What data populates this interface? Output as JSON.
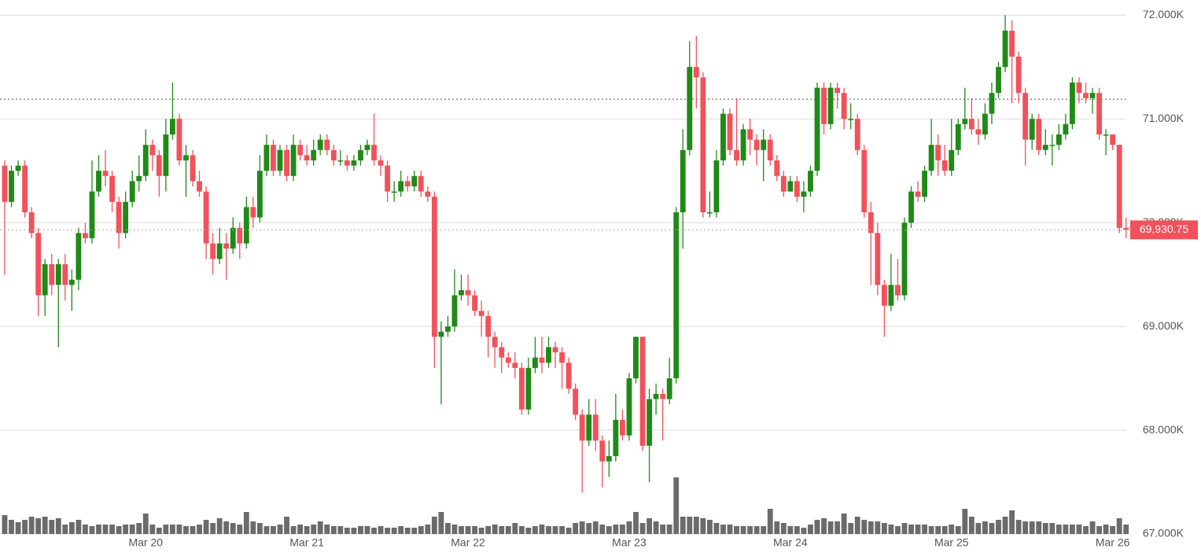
{
  "chart_data": {
    "type": "candlestick",
    "xlim": [
      -0.7,
      167.5
    ],
    "xticks": [
      {
        "value": 21,
        "label": "Mar 20"
      },
      {
        "value": 45,
        "label": "Mar 21"
      },
      {
        "value": 69,
        "label": "Mar 22"
      },
      {
        "value": 93,
        "label": "Mar 23"
      },
      {
        "value": 117,
        "label": "Mar 24"
      },
      {
        "value": 141,
        "label": "Mar 25"
      },
      {
        "value": 165,
        "label": "Mar 26"
      }
    ],
    "ylim": [
      67000,
      72070
    ],
    "yticks": [
      {
        "value": 67000,
        "label": "67.000K"
      },
      {
        "value": 68000,
        "label": "68.000K"
      },
      {
        "value": 69000,
        "label": "69.000K"
      },
      {
        "value": 70000,
        "label": "70.000K"
      },
      {
        "value": 71000,
        "label": "71.000K"
      },
      {
        "value": 72000,
        "label": "72.000K"
      }
    ],
    "grid": true,
    "up_color": "#1f8a16",
    "down_color": "#f2515b",
    "volume_color": "#6b6b6b",
    "ref_line": 71190,
    "price_line": {
      "value": 69930.75,
      "label": "69,930.75"
    },
    "open": [
      70550,
      70200,
      70500,
      70550,
      70100,
      69900,
      69300,
      69600,
      69400,
      69600,
      69400,
      69450,
      69900,
      69850,
      70300,
      70500,
      70450,
      70200,
      69900,
      70200,
      70400,
      70450,
      70750,
      70650,
      70450,
      70850,
      71000,
      70600,
      70650,
      70400,
      70300,
      69800,
      69650,
      69800,
      69750,
      69950,
      69800,
      70150,
      70050,
      70500,
      70750,
      70500,
      70700,
      70450,
      70750,
      70650,
      70600,
      70700,
      70800,
      70700,
      70600,
      70600,
      70550,
      70600,
      70700,
      70750,
      70600,
      70550,
      70300,
      70300,
      70400,
      70350,
      70450,
      70300,
      70250,
      68900,
      68950,
      69000,
      69300,
      69350,
      69300,
      69150,
      69100,
      68900,
      68800,
      68700,
      68650,
      68600,
      68200,
      68600,
      68700,
      68650,
      68800,
      68750,
      68650,
      68400,
      68150,
      67900,
      68150,
      67900,
      67700,
      67750,
      68100,
      67950,
      68500,
      68900,
      67850,
      68300,
      68350,
      68300,
      68500,
      70100,
      70700,
      71500,
      71400,
      70100,
      70100,
      70600,
      71050,
      70700,
      70600,
      70900,
      70800,
      70700,
      70800,
      70600,
      70450,
      70300,
      70400,
      70250,
      70300,
      70500,
      71300,
      70950,
      71300,
      71250,
      71000,
      71000,
      70700,
      70100,
      69900,
      69400,
      69200,
      69400,
      69300,
      70000,
      70300,
      70250,
      70500,
      70750,
      70600,
      70500,
      70700,
      70950,
      71000,
      70900,
      70850,
      71050,
      71250,
      71500,
      71850,
      71600,
      71250,
      70800,
      71000,
      70700,
      70750,
      70750,
      70850,
      70950,
      71350,
      71250,
      71200,
      71250,
      70850,
      70850,
      70750,
      69950
    ],
    "high": [
      70600,
      70550,
      70600,
      70600,
      70150,
      69950,
      69650,
      69700,
      69650,
      69700,
      69550,
      69950,
      70000,
      70600,
      70650,
      70700,
      70500,
      70250,
      70300,
      70500,
      70650,
      70900,
      70800,
      70700,
      71000,
      71350,
      71050,
      70750,
      70700,
      70500,
      70350,
      69900,
      69950,
      69900,
      70050,
      70000,
      70250,
      70250,
      70650,
      70850,
      70800,
      70750,
      70750,
      70850,
      70800,
      70750,
      70800,
      70850,
      70850,
      70750,
      70700,
      70650,
      70650,
      70750,
      70800,
      71050,
      70650,
      70600,
      70400,
      70500,
      70450,
      70500,
      70500,
      70350,
      70300,
      69050,
      69100,
      69550,
      69500,
      69500,
      69350,
      69250,
      69150,
      68950,
      68850,
      68750,
      68750,
      68650,
      68700,
      68900,
      68900,
      68900,
      68850,
      68800,
      68700,
      68450,
      68200,
      68300,
      68300,
      67950,
      67900,
      68350,
      68200,
      68550,
      68900,
      68900,
      68400,
      68450,
      68400,
      68700,
      70150,
      70900,
      71750,
      71800,
      71450,
      70300,
      70700,
      71100,
      71100,
      71200,
      70950,
      71000,
      70850,
      70900,
      70850,
      70650,
      70500,
      70450,
      70450,
      70400,
      70550,
      71350,
      71350,
      71350,
      71350,
      71300,
      71150,
      71050,
      70750,
      70200,
      70000,
      69450,
      69700,
      69650,
      70050,
      70350,
      70400,
      70550,
      71000,
      70850,
      70750,
      71000,
      71000,
      71300,
      71200,
      71000,
      71150,
      71350,
      71550,
      72000,
      71950,
      71650,
      71300,
      71050,
      71050,
      70900,
      70850,
      70950,
      71050,
      71400,
      71400,
      71350,
      71300,
      71300,
      70900,
      70850,
      70750,
      70050
    ],
    "low": [
      69500,
      70150,
      70450,
      70050,
      69850,
      69100,
      69100,
      69300,
      68800,
      69250,
      69150,
      69350,
      69800,
      69800,
      70250,
      70350,
      70100,
      69750,
      69850,
      70150,
      70300,
      70400,
      70500,
      70250,
      70300,
      70800,
      70550,
      70250,
      70350,
      70250,
      69650,
      69500,
      69600,
      69450,
      69700,
      69650,
      69750,
      69950,
      70000,
      70450,
      70450,
      70450,
      70400,
      70400,
      70600,
      70550,
      70550,
      70650,
      70650,
      70550,
      70550,
      70500,
      70500,
      70550,
      70650,
      70550,
      70450,
      70200,
      70200,
      70250,
      70300,
      70300,
      70250,
      70200,
      68600,
      68250,
      68900,
      68950,
      69250,
      69200,
      69100,
      68900,
      68700,
      68600,
      68550,
      68600,
      68500,
      68150,
      68150,
      68550,
      68550,
      68600,
      68600,
      68400,
      68350,
      68100,
      67400,
      67850,
      67800,
      67450,
      67550,
      67700,
      67900,
      67900,
      68450,
      67800,
      67500,
      68150,
      67900,
      68250,
      68450,
      69750,
      70650,
      71100,
      70050,
      70050,
      70050,
      70550,
      70650,
      70550,
      70550,
      70650,
      70550,
      70400,
      70550,
      70400,
      70250,
      70300,
      70200,
      70100,
      70250,
      70450,
      70850,
      70900,
      71100,
      70900,
      70900,
      70650,
      70050,
      69400,
      69300,
      68900,
      69150,
      69250,
      69250,
      69950,
      70200,
      70200,
      70450,
      70450,
      70450,
      70450,
      70650,
      70900,
      70850,
      70750,
      70800,
      70950,
      71200,
      71450,
      71150,
      71150,
      70550,
      70700,
      70650,
      70650,
      70550,
      70700,
      70800,
      70900,
      71150,
      71150,
      71050,
      70800,
      70650,
      70700,
      69900,
      69850
    ],
    "close": [
      70200,
      70500,
      70550,
      70100,
      69900,
      69300,
      69600,
      69400,
      69600,
      69400,
      69450,
      69900,
      69850,
      70300,
      70500,
      70450,
      70200,
      69900,
      70200,
      70400,
      70450,
      70750,
      70650,
      70450,
      70850,
      71000,
      70600,
      70650,
      70400,
      70300,
      69800,
      69650,
      69800,
      69750,
      69950,
      69800,
      70150,
      70050,
      70500,
      70750,
      70500,
      70700,
      70450,
      70750,
      70650,
      70600,
      70700,
      70800,
      70700,
      70600,
      70600,
      70550,
      70600,
      70700,
      70750,
      70600,
      70550,
      70300,
      70300,
      70400,
      70350,
      70450,
      70300,
      70250,
      68900,
      68950,
      69000,
      69300,
      69350,
      69300,
      69150,
      69100,
      68900,
      68800,
      68700,
      68650,
      68600,
      68200,
      68600,
      68700,
      68650,
      68800,
      68750,
      68650,
      68400,
      68150,
      67900,
      68150,
      67900,
      67700,
      67750,
      68100,
      67950,
      68500,
      68900,
      67850,
      68300,
      68350,
      68300,
      68500,
      70100,
      70700,
      71500,
      71400,
      70100,
      70100,
      70600,
      71050,
      70700,
      70600,
      70900,
      70800,
      70700,
      70800,
      70600,
      70450,
      70300,
      70400,
      70250,
      70300,
      70500,
      71300,
      70950,
      71300,
      71250,
      71000,
      71000,
      70700,
      70100,
      69900,
      69400,
      69200,
      69400,
      69300,
      70000,
      70300,
      70250,
      70500,
      70750,
      70600,
      70500,
      70700,
      70950,
      71000,
      70900,
      70850,
      71050,
      71250,
      71500,
      71850,
      71600,
      71250,
      70800,
      71000,
      70700,
      70750,
      70750,
      70850,
      70950,
      71350,
      71250,
      71200,
      71250,
      70850,
      70850,
      70750,
      69950,
      69930.75
    ],
    "volume": [
      24,
      18,
      15,
      18,
      22,
      20,
      22,
      18,
      20,
      12,
      15,
      18,
      12,
      10,
      12,
      12,
      12,
      10,
      12,
      12,
      14,
      26,
      12,
      8,
      12,
      12,
      12,
      10,
      10,
      12,
      18,
      14,
      20,
      16,
      14,
      12,
      28,
      16,
      14,
      10,
      10,
      12,
      22,
      10,
      12,
      10,
      12,
      16,
      12,
      10,
      10,
      8,
      8,
      10,
      10,
      8,
      10,
      8,
      8,
      10,
      8,
      8,
      10,
      12,
      22,
      28,
      14,
      12,
      10,
      10,
      10,
      8,
      10,
      12,
      10,
      10,
      14,
      10,
      8,
      10,
      12,
      10,
      10,
      10,
      8,
      14,
      16,
      14,
      16,
      12,
      10,
      12,
      12,
      16,
      28,
      14,
      20,
      16,
      12,
      12,
      72,
      22,
      22,
      22,
      20,
      18,
      14,
      12,
      12,
      10,
      10,
      10,
      10,
      10,
      32,
      16,
      14,
      10,
      10,
      8,
      12,
      18,
      20,
      16,
      16,
      26,
      14,
      22,
      18,
      16,
      16,
      14,
      12,
      10,
      14,
      12,
      12,
      12,
      10,
      10,
      10,
      12,
      10,
      32,
      22,
      14,
      16,
      14,
      18,
      22,
      30,
      18,
      16,
      16,
      16,
      14,
      14,
      12,
      12,
      12,
      12,
      10,
      16,
      10,
      12,
      10,
      20,
      12
    ]
  }
}
